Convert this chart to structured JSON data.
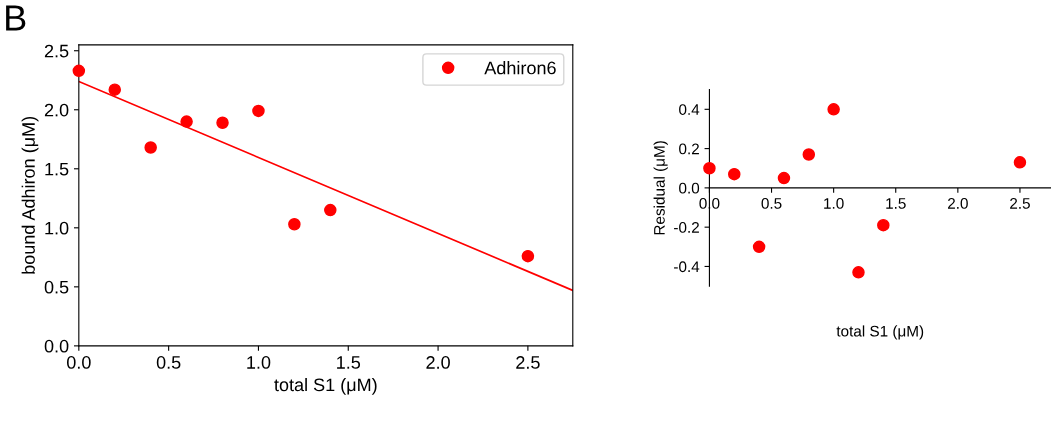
{
  "chart_data": [
    {
      "type": "scatter",
      "xlabel": "total S1 (μM)",
      "ylabel": "bound Adhiron (μM)",
      "annotations": [
        "B"
      ],
      "legend": "top right",
      "grid": false,
      "xlim": [
        0,
        2.75
      ],
      "xticks": [
        {
          "value": 0,
          "label": "0.0"
        },
        0.5,
        {
          "value": 1,
          "label": "1.0"
        },
        1.5,
        {
          "value": 2,
          "label": "2.0"
        },
        2.5
      ],
      "ylim": [
        0,
        2.55
      ],
      "yticks": [
        {
          "value": 0,
          "label": "0.0"
        },
        0.5,
        {
          "value": 1,
          "label": "1.0"
        },
        1.5,
        {
          "value": 2,
          "label": "2.0"
        },
        2.5
      ],
      "series": [
        {
          "name": "Adhiron6",
          "color": "#ff0000",
          "marker": "circle",
          "x": [
            0,
            0.2,
            0.4,
            0.6,
            0.8,
            1.0,
            1.2,
            1.4,
            2.5
          ],
          "values": [
            2.33,
            2.17,
            1.68,
            1.9,
            1.89,
            1.99,
            1.03,
            1.15,
            0.76
          ]
        },
        {
          "type": "line",
          "color": "#ff0000",
          "marker": "none",
          "x": [
            0,
            2.75
          ],
          "values": [
            2.24,
            0.47
          ]
        }
      ]
    },
    {
      "type": "scatter",
      "xlabel": "total S1 (μM)",
      "ylabel": "Residual (μM)",
      "grid": false,
      "xlim": [
        0,
        2.75
      ],
      "xticks": [
        {
          "value": 0,
          "label": "0.0"
        },
        0.5,
        {
          "value": 1,
          "label": "1.0"
        },
        1.5,
        {
          "value": 2,
          "label": "2.0"
        },
        2.5
      ],
      "ylim": [
        -0.5,
        0.5
      ],
      "yticks": [
        -0.4,
        -0.2,
        {
          "value": 0,
          "label": "0.0"
        },
        0.2,
        0.4
      ],
      "series": [
        {
          "color": "#ff0000",
          "marker": "circle",
          "x": [
            0,
            0.2,
            0.4,
            0.6,
            0.8,
            1.0,
            1.2,
            1.4,
            2.5
          ],
          "values": [
            0.1,
            0.07,
            -0.3,
            0.05,
            0.17,
            0.4,
            -0.43,
            -0.19,
            0.13
          ]
        }
      ]
    }
  ]
}
